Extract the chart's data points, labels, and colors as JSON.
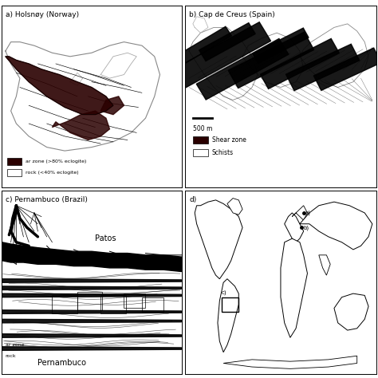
{
  "figure_width": 4.74,
  "figure_height": 4.74,
  "dpi": 100,
  "bg_color": "#ffffff",
  "shear_dark": "#2a0000",
  "shear_black": "#000000",
  "legend_shear_label": "Shear zone",
  "legend_schists_label": "Schists",
  "legend_scale": "500 m",
  "label_patos": "Patos",
  "label_pernambuco": "Pernambuco",
  "panel_a_title": "a) Holsnøy (Norway)",
  "panel_b_title": "b) Cap de Creus (Spain)",
  "panel_c_title": "c) Pernambuco (Brazil)",
  "panel_d_title": "d)",
  "legend_a_line1": "ar zone (>80% eclogite)",
  "legend_a_line2": "rock (<40% eclogite)",
  "legend_c_line1": "ar zone",
  "legend_c_line2": "rock"
}
